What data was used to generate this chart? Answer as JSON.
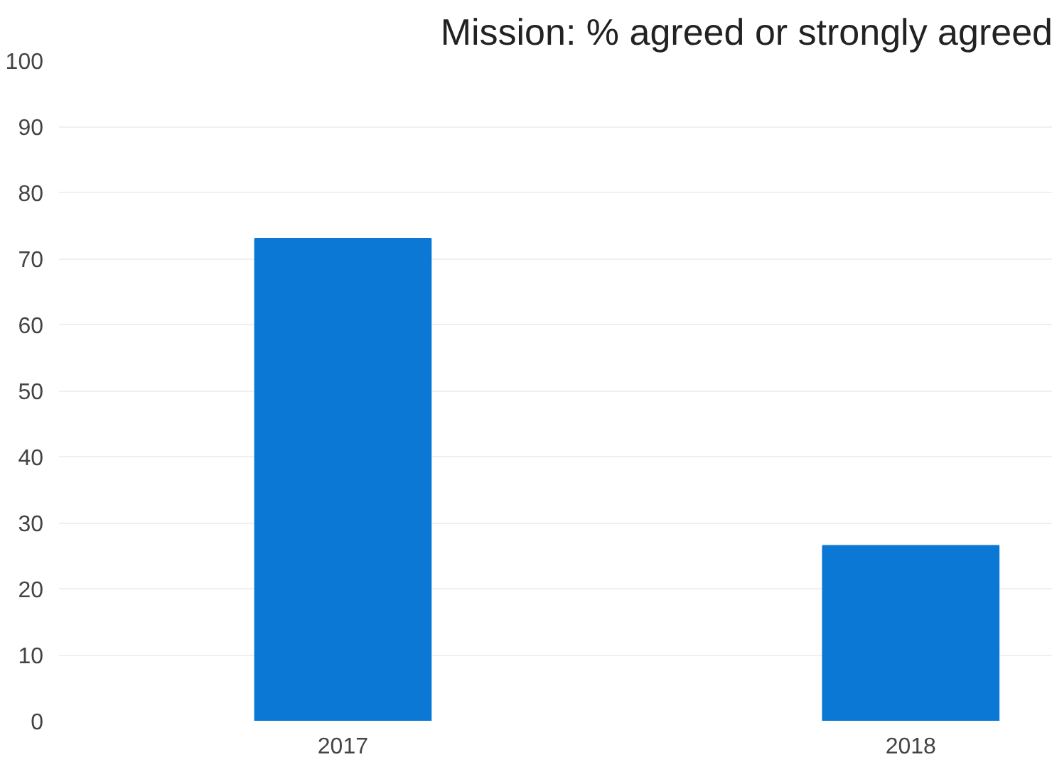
{
  "chart_data": {
    "type": "bar",
    "title": "Mission: % agreed or strongly agreed",
    "categories": [
      "2017",
      "2018"
    ],
    "values": [
      73,
      26.5
    ],
    "color": "#0a78d4",
    "ylim": [
      0,
      100
    ],
    "yticks": [
      0,
      10,
      20,
      30,
      40,
      50,
      60,
      70,
      80,
      90,
      100
    ],
    "grid": "y"
  }
}
